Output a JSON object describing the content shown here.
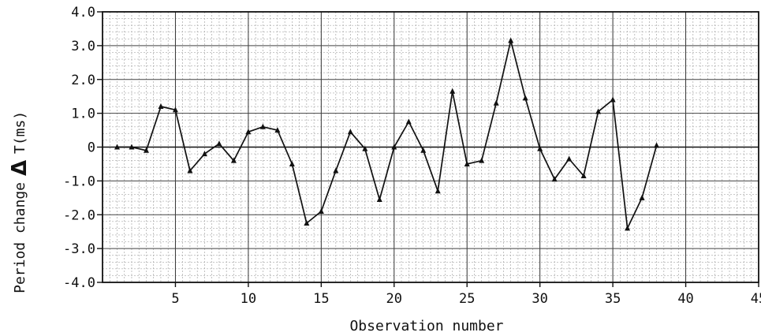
{
  "chart_data": {
    "type": "line",
    "xlabel": "Observation number",
    "ylabel_prefix": "Period change",
    "ylabel_symbol": "Δ",
    "ylabel_suffix": "T(ms)",
    "xlim": [
      0,
      45
    ],
    "ylim": [
      -4.0,
      4.0
    ],
    "grid": true,
    "x_ticks": [
      "5",
      "10",
      "15",
      "20",
      "25",
      "30",
      "35",
      "40",
      "45"
    ],
    "y_ticks": [
      "4.0",
      "3.0",
      "2.0",
      "1.0",
      "0",
      "-1.0",
      "-2.0",
      "-3.0",
      "-4.0"
    ],
    "series": [
      {
        "x": [
          1,
          2,
          3,
          4,
          5,
          6,
          7,
          8,
          9,
          10,
          11,
          12,
          13,
          14,
          15,
          16,
          17,
          18,
          19,
          20,
          21,
          22,
          23,
          24,
          25,
          26,
          27,
          28,
          29,
          30,
          31,
          32,
          33,
          34,
          35,
          36,
          37,
          38
        ],
        "values": [
          0.0,
          0.0,
          -0.1,
          1.2,
          1.1,
          -0.7,
          -0.2,
          0.1,
          -0.4,
          0.45,
          0.6,
          0.5,
          -0.5,
          -2.25,
          -1.9,
          -0.7,
          0.45,
          -0.05,
          -1.55,
          0.0,
          0.75,
          -0.1,
          -1.3,
          1.65,
          -0.5,
          -0.4,
          1.3,
          3.15,
          1.45,
          -0.05,
          -0.95,
          -0.35,
          -0.85,
          1.05,
          1.4,
          -2.4,
          -1.5,
          0.05
        ]
      }
    ]
  }
}
